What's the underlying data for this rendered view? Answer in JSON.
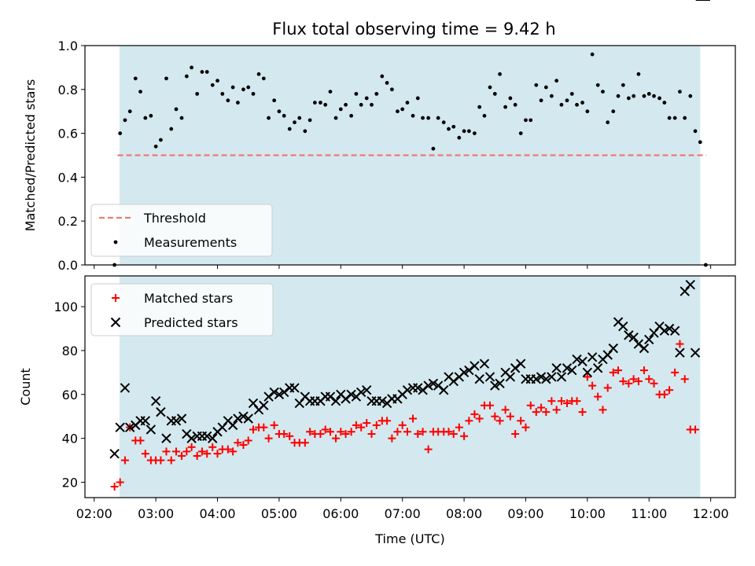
{
  "chart_data": [
    {
      "type": "scatter",
      "title": "Flux total observing time = 9.42 h",
      "ylabel": "Matched/Predicted stars",
      "xlabel": "",
      "ylim": [
        0.0,
        1.0
      ],
      "y_ticks": [
        "0.0",
        "0.2",
        "0.4",
        "0.6",
        "0.8",
        "1.0"
      ],
      "x_range_hours": [
        1.85,
        12.4
      ],
      "observing_window_hours": [
        2.41,
        11.83
      ],
      "shaded_color": "#d4e9ef",
      "threshold": {
        "name": "Threshold",
        "value": 0.5,
        "color": "#f07878",
        "x_range_hours": [
          2.38,
          11.93
        ]
      },
      "legend": {
        "position": "lower-left",
        "entries": [
          "Threshold",
          "Measurements"
        ]
      },
      "series": [
        {
          "name": "Measurements",
          "marker": "dot",
          "color": "#000000",
          "x": [
            2.33,
            2.42,
            2.5,
            2.58,
            2.67,
            2.75,
            2.83,
            2.92,
            3.0,
            3.08,
            3.17,
            3.25,
            3.33,
            3.42,
            3.5,
            3.58,
            3.67,
            3.75,
            3.83,
            3.92,
            4.0,
            4.08,
            4.17,
            4.25,
            4.33,
            4.42,
            4.5,
            4.58,
            4.67,
            4.75,
            4.83,
            4.92,
            5.0,
            5.08,
            5.17,
            5.25,
            5.33,
            5.42,
            5.5,
            5.58,
            5.67,
            5.75,
            5.83,
            5.92,
            6.0,
            6.08,
            6.17,
            6.25,
            6.33,
            6.42,
            6.5,
            6.58,
            6.67,
            6.75,
            6.83,
            6.92,
            7.0,
            7.08,
            7.17,
            7.25,
            7.33,
            7.42,
            7.5,
            7.58,
            7.67,
            7.75,
            7.83,
            7.92,
            8.0,
            8.08,
            8.17,
            8.25,
            8.33,
            8.42,
            8.5,
            8.58,
            8.67,
            8.75,
            8.83,
            8.92,
            9.0,
            9.08,
            9.17,
            9.25,
            9.33,
            9.42,
            9.5,
            9.58,
            9.67,
            9.75,
            9.83,
            9.92,
            10.0,
            10.08,
            10.17,
            10.25,
            10.33,
            10.42,
            10.5,
            10.58,
            10.67,
            10.75,
            10.83,
            10.92,
            11.0,
            11.08,
            11.17,
            11.25,
            11.33,
            11.42,
            11.5,
            11.58,
            11.67,
            11.75,
            11.83,
            11.92
          ],
          "y": [
            0.0,
            0.6,
            0.66,
            0.7,
            0.85,
            0.79,
            0.67,
            0.68,
            0.54,
            0.57,
            0.85,
            0.62,
            0.71,
            0.67,
            0.86,
            0.9,
            0.78,
            0.88,
            0.88,
            0.82,
            0.84,
            0.78,
            0.75,
            0.81,
            0.74,
            0.8,
            0.81,
            0.78,
            0.87,
            0.85,
            0.67,
            0.75,
            0.7,
            0.68,
            0.62,
            0.65,
            0.67,
            0.61,
            0.66,
            0.74,
            0.74,
            0.73,
            0.79,
            0.67,
            0.71,
            0.73,
            0.68,
            0.78,
            0.73,
            0.76,
            0.73,
            0.78,
            0.86,
            0.83,
            0.8,
            0.7,
            0.71,
            0.74,
            0.68,
            0.76,
            0.67,
            0.67,
            0.53,
            0.67,
            0.65,
            0.62,
            0.63,
            0.58,
            0.61,
            0.61,
            0.6,
            0.72,
            0.68,
            0.81,
            0.78,
            0.87,
            0.72,
            0.76,
            0.73,
            0.6,
            0.66,
            0.66,
            0.82,
            0.75,
            0.81,
            0.77,
            0.84,
            0.73,
            0.75,
            0.78,
            0.73,
            0.74,
            0.7,
            0.96,
            0.82,
            0.79,
            0.65,
            0.7,
            0.77,
            0.82,
            0.76,
            0.77,
            0.87,
            0.77,
            0.78,
            0.77,
            0.76,
            0.74,
            0.67,
            0.67,
            0.79,
            0.67,
            0.77,
            0.61,
            0.56,
            0.0
          ]
        }
      ]
    },
    {
      "type": "scatter",
      "title": "",
      "xlabel": "Time (UTC)",
      "ylabel": "Count",
      "ylim": [
        13,
        114
      ],
      "y_ticks": [
        "20",
        "40",
        "60",
        "80",
        "100"
      ],
      "x_tick_hours": [
        2,
        3,
        4,
        5,
        6,
        7,
        8,
        9,
        10,
        11,
        12
      ],
      "x_tick_labels": [
        "02:00",
        "03:00",
        "04:00",
        "05:00",
        "06:00",
        "07:00",
        "08:00",
        "09:00",
        "10:00",
        "11:00",
        "12:00"
      ],
      "x_range_hours": [
        1.85,
        12.4
      ],
      "observing_window_hours": [
        2.41,
        11.83
      ],
      "shaded_color": "#d4e9ef",
      "legend": {
        "position": "top-left",
        "entries": [
          "Matched stars",
          "Predicted stars"
        ]
      },
      "x": [
        2.33,
        2.42,
        2.5,
        2.58,
        2.67,
        2.75,
        2.83,
        2.92,
        3.0,
        3.08,
        3.17,
        3.25,
        3.33,
        3.42,
        3.5,
        3.58,
        3.67,
        3.75,
        3.83,
        3.92,
        4.0,
        4.08,
        4.17,
        4.25,
        4.33,
        4.42,
        4.5,
        4.58,
        4.67,
        4.75,
        4.83,
        4.92,
        5.0,
        5.08,
        5.17,
        5.25,
        5.33,
        5.42,
        5.5,
        5.58,
        5.67,
        5.75,
        5.83,
        5.92,
        6.0,
        6.08,
        6.17,
        6.25,
        6.33,
        6.42,
        6.5,
        6.58,
        6.67,
        6.75,
        6.83,
        6.92,
        7.0,
        7.08,
        7.17,
        7.25,
        7.33,
        7.42,
        7.5,
        7.58,
        7.67,
        7.75,
        7.83,
        7.92,
        8.0,
        8.08,
        8.17,
        8.25,
        8.33,
        8.42,
        8.5,
        8.58,
        8.67,
        8.75,
        8.83,
        8.92,
        9.0,
        9.08,
        9.17,
        9.25,
        9.33,
        9.42,
        9.5,
        9.58,
        9.67,
        9.75,
        9.83,
        9.92,
        10.0,
        10.08,
        10.17,
        10.25,
        10.33,
        10.42,
        10.5,
        10.58,
        10.67,
        10.75,
        10.83,
        10.92,
        11.0,
        11.08,
        11.17,
        11.25,
        11.33,
        11.42,
        11.5,
        11.58,
        11.67,
        11.75,
        11.83,
        11.92
      ],
      "series": [
        {
          "name": "Matched stars",
          "marker": "plus",
          "color": "#ff0000",
          "y": [
            18,
            20,
            30,
            45,
            39,
            39,
            33,
            30,
            30,
            30,
            34,
            30,
            34,
            32,
            34,
            36,
            32,
            34,
            33,
            36,
            33,
            35,
            35,
            34,
            38,
            37,
            39,
            44,
            45,
            45,
            40,
            46,
            42,
            42,
            41,
            38,
            38,
            38,
            43,
            42,
            42,
            44,
            43,
            40,
            43,
            42,
            43,
            46,
            45,
            47,
            42,
            46,
            48,
            48,
            40,
            43,
            46,
            43,
            49,
            42,
            43,
            35,
            43,
            43,
            43,
            43,
            42,
            45,
            41,
            48,
            51,
            49,
            55,
            55,
            50,
            48,
            53,
            50,
            42,
            48,
            45,
            55,
            52,
            54,
            52,
            57,
            53,
            57,
            56,
            57,
            57,
            52,
            68,
            64,
            59,
            53,
            63,
            70,
            71,
            66,
            65,
            67,
            66,
            71,
            67,
            65,
            60,
            60,
            62,
            70,
            83,
            67,
            44,
            44
          ]
        },
        {
          "name": "Predicted stars",
          "marker": "x",
          "color": "#000000",
          "y": [
            33,
            45,
            63,
            45,
            46,
            48,
            48,
            44,
            57,
            52,
            40,
            48,
            48,
            49,
            42,
            40,
            41,
            41,
            41,
            40,
            43,
            45,
            48,
            46,
            49,
            50,
            49,
            56,
            53,
            55,
            59,
            61,
            60,
            61,
            63,
            63,
            56,
            59,
            57,
            57,
            57,
            59,
            59,
            57,
            60,
            58,
            60,
            59,
            61,
            62,
            57,
            57,
            57,
            56,
            58,
            58,
            60,
            62,
            63,
            63,
            62,
            64,
            65,
            64,
            62,
            68,
            66,
            68,
            70,
            71,
            73,
            67,
            74,
            68,
            64,
            65,
            70,
            68,
            72,
            74,
            67,
            67,
            67,
            68,
            67,
            68,
            72,
            68,
            72,
            71,
            76,
            75,
            70,
            77,
            72,
            76,
            78,
            81,
            93,
            91,
            87,
            86,
            83,
            81,
            85,
            88,
            91,
            89,
            90,
            89,
            79,
            107,
            110,
            79
          ]
        }
      ]
    }
  ]
}
